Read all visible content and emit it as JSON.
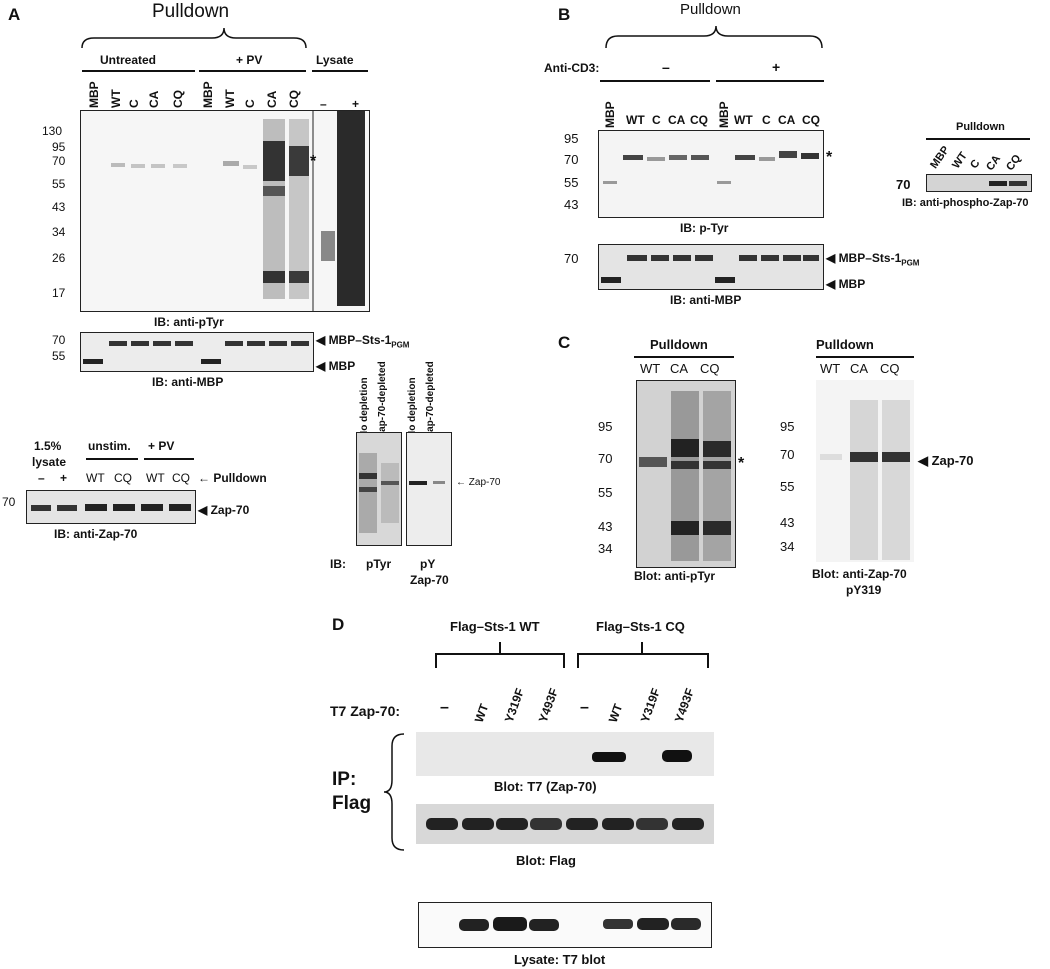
{
  "panel_a": {
    "letter": "A",
    "pulldown": "Pulldown",
    "untreated": "Untreated",
    "pv": "+ PV",
    "lysate": "Lysate",
    "lanes": [
      "MBP",
      "WT",
      "C",
      "CA",
      "CQ",
      "MBP",
      "WT",
      "C",
      "CA",
      "CQ"
    ],
    "lysate_lanes": [
      "–",
      "+"
    ],
    "markers": [
      "130",
      "95",
      "70",
      "55",
      "43",
      "34",
      "26",
      "17"
    ],
    "star": "*",
    "ib_ptyr": "IB: anti-pTyr",
    "mbp_markers": [
      "70",
      "55"
    ],
    "mbp_fusion": "MBP–Sts-1",
    "pgm": "PGM",
    "mbp": "MBP",
    "ib_mbp": "IB: anti-MBP",
    "lys_pct": "1.5%",
    "lys_word": "lysate",
    "lys_lanes": [
      "–",
      "+"
    ],
    "unstim": "unstim.",
    "pv2": "+ PV",
    "zap_lanes": [
      "WT",
      "CQ",
      "WT",
      "CQ"
    ],
    "pulldown_arrow": "← Pulldown",
    "marker70": "70",
    "zap70": "Zap-70",
    "ib_zap": "IB: anti-Zap-70",
    "depl_lanes": [
      "No depletion",
      "Zap-70-depleted",
      "No depletion",
      "Zap-70-depleted"
    ],
    "zap_arrow": "← Zap-70",
    "ib_label": "IB:",
    "ptyr": "pTyr",
    "py": "pY",
    "zap70_2": "Zap-70"
  },
  "panel_b": {
    "letter": "B",
    "pulldown": "Pulldown",
    "anti_cd3": "Anti-CD3:",
    "minus": "–",
    "plus": "+",
    "lanes": [
      "MBP",
      "WT",
      "C",
      "CA",
      "CQ",
      "MBP",
      "WT",
      "C",
      "CA",
      "CQ"
    ],
    "markers": [
      "95",
      "70",
      "55",
      "43"
    ],
    "star": "*",
    "ib_ptyr": "IB: p-Tyr",
    "marker70": "70",
    "mbp_fusion": "MBP–Sts-1",
    "pgm": "PGM",
    "mbp": "MBP",
    "ib_mbp": "IB: anti-MBP",
    "inset_pulldown": "Pulldown",
    "inset_lanes": [
      "MBP",
      "WT",
      "C",
      "CA",
      "CQ"
    ],
    "inset_marker": "70",
    "inset_ib": "IB: anti-phospho-Zap-70"
  },
  "panel_c": {
    "letter": "C",
    "pulldown": "Pulldown",
    "lanes": [
      "WT",
      "CA",
      "CQ"
    ],
    "markers": [
      "95",
      "70",
      "55",
      "43",
      "34"
    ],
    "star": "*",
    "blot1": "Blot: anti-pTyr",
    "pulldown2": "Pulldown",
    "lanes2": [
      "WT",
      "CA",
      "CQ"
    ],
    "markers2": [
      "95",
      "70",
      "55",
      "43",
      "34"
    ],
    "zap70": "Zap-70",
    "blot2_a": "Blot: anti-Zap-70",
    "blot2_b": "pY319"
  },
  "panel_d": {
    "letter": "D",
    "flag_wt": "Flag–Sts-1 WT",
    "flag_cq": "Flag–Sts-1 CQ",
    "t7": "T7 Zap-70:",
    "lanes": [
      "–",
      "WT",
      "Y319F",
      "Y493F",
      "–",
      "WT",
      "Y319F",
      "Y493F"
    ],
    "ip": "IP:",
    "flag": "Flag",
    "blot_t7": "Blot: T7 (Zap-70)",
    "blot_flag": "Blot: Flag",
    "lysate": "Lysate: T7 blot"
  }
}
